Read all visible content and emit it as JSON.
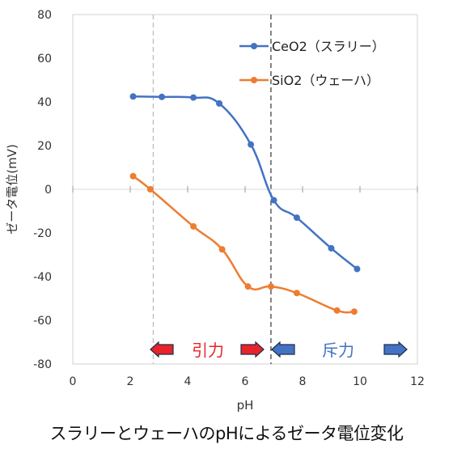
{
  "chart_data": {
    "type": "line",
    "title": "",
    "caption": "スラリーとウェーハのpHによるゼータ電位変化",
    "xlabel": "pH",
    "ylabel": "ゼータ電位(mV)",
    "xlim": [
      0,
      12
    ],
    "ylim": [
      -80,
      80
    ],
    "xticks": [
      0,
      2,
      4,
      6,
      8,
      10,
      12
    ],
    "yticks": [
      -80,
      -60,
      -40,
      -20,
      0,
      20,
      40,
      60,
      80
    ],
    "grid": false,
    "legend_position": "top-right",
    "series": [
      {
        "name": "CeO2（スラリー）",
        "color": "#4472C4",
        "x": [
          2.1,
          3.1,
          4.2,
          5.1,
          6.2,
          7.0,
          7.8,
          9.0,
          9.9
        ],
        "y": [
          42.5,
          42.3,
          42.0,
          39.3,
          20.5,
          -5.0,
          -13.0,
          -27.0,
          -36.5
        ]
      },
      {
        "name": "SiO2（ウェーハ）",
        "color": "#ED7D31",
        "x": [
          2.1,
          2.7,
          4.2,
          5.2,
          6.1,
          6.9,
          7.8,
          9.2,
          9.8
        ],
        "y": [
          6.0,
          0.0,
          -17.0,
          -27.5,
          -44.5,
          -44.5,
          -47.5,
          -55.5,
          -56.0
        ]
      }
    ],
    "reference_lines": [
      {
        "x": 2.8,
        "style": "dashed",
        "color": "#bbbbbb"
      },
      {
        "x": 6.9,
        "style": "dashed",
        "color": "#333333"
      }
    ],
    "annotations": [
      {
        "text": "引力",
        "color": "#E8232A"
      },
      {
        "text": "斥力",
        "color": "#4472C4"
      }
    ]
  }
}
